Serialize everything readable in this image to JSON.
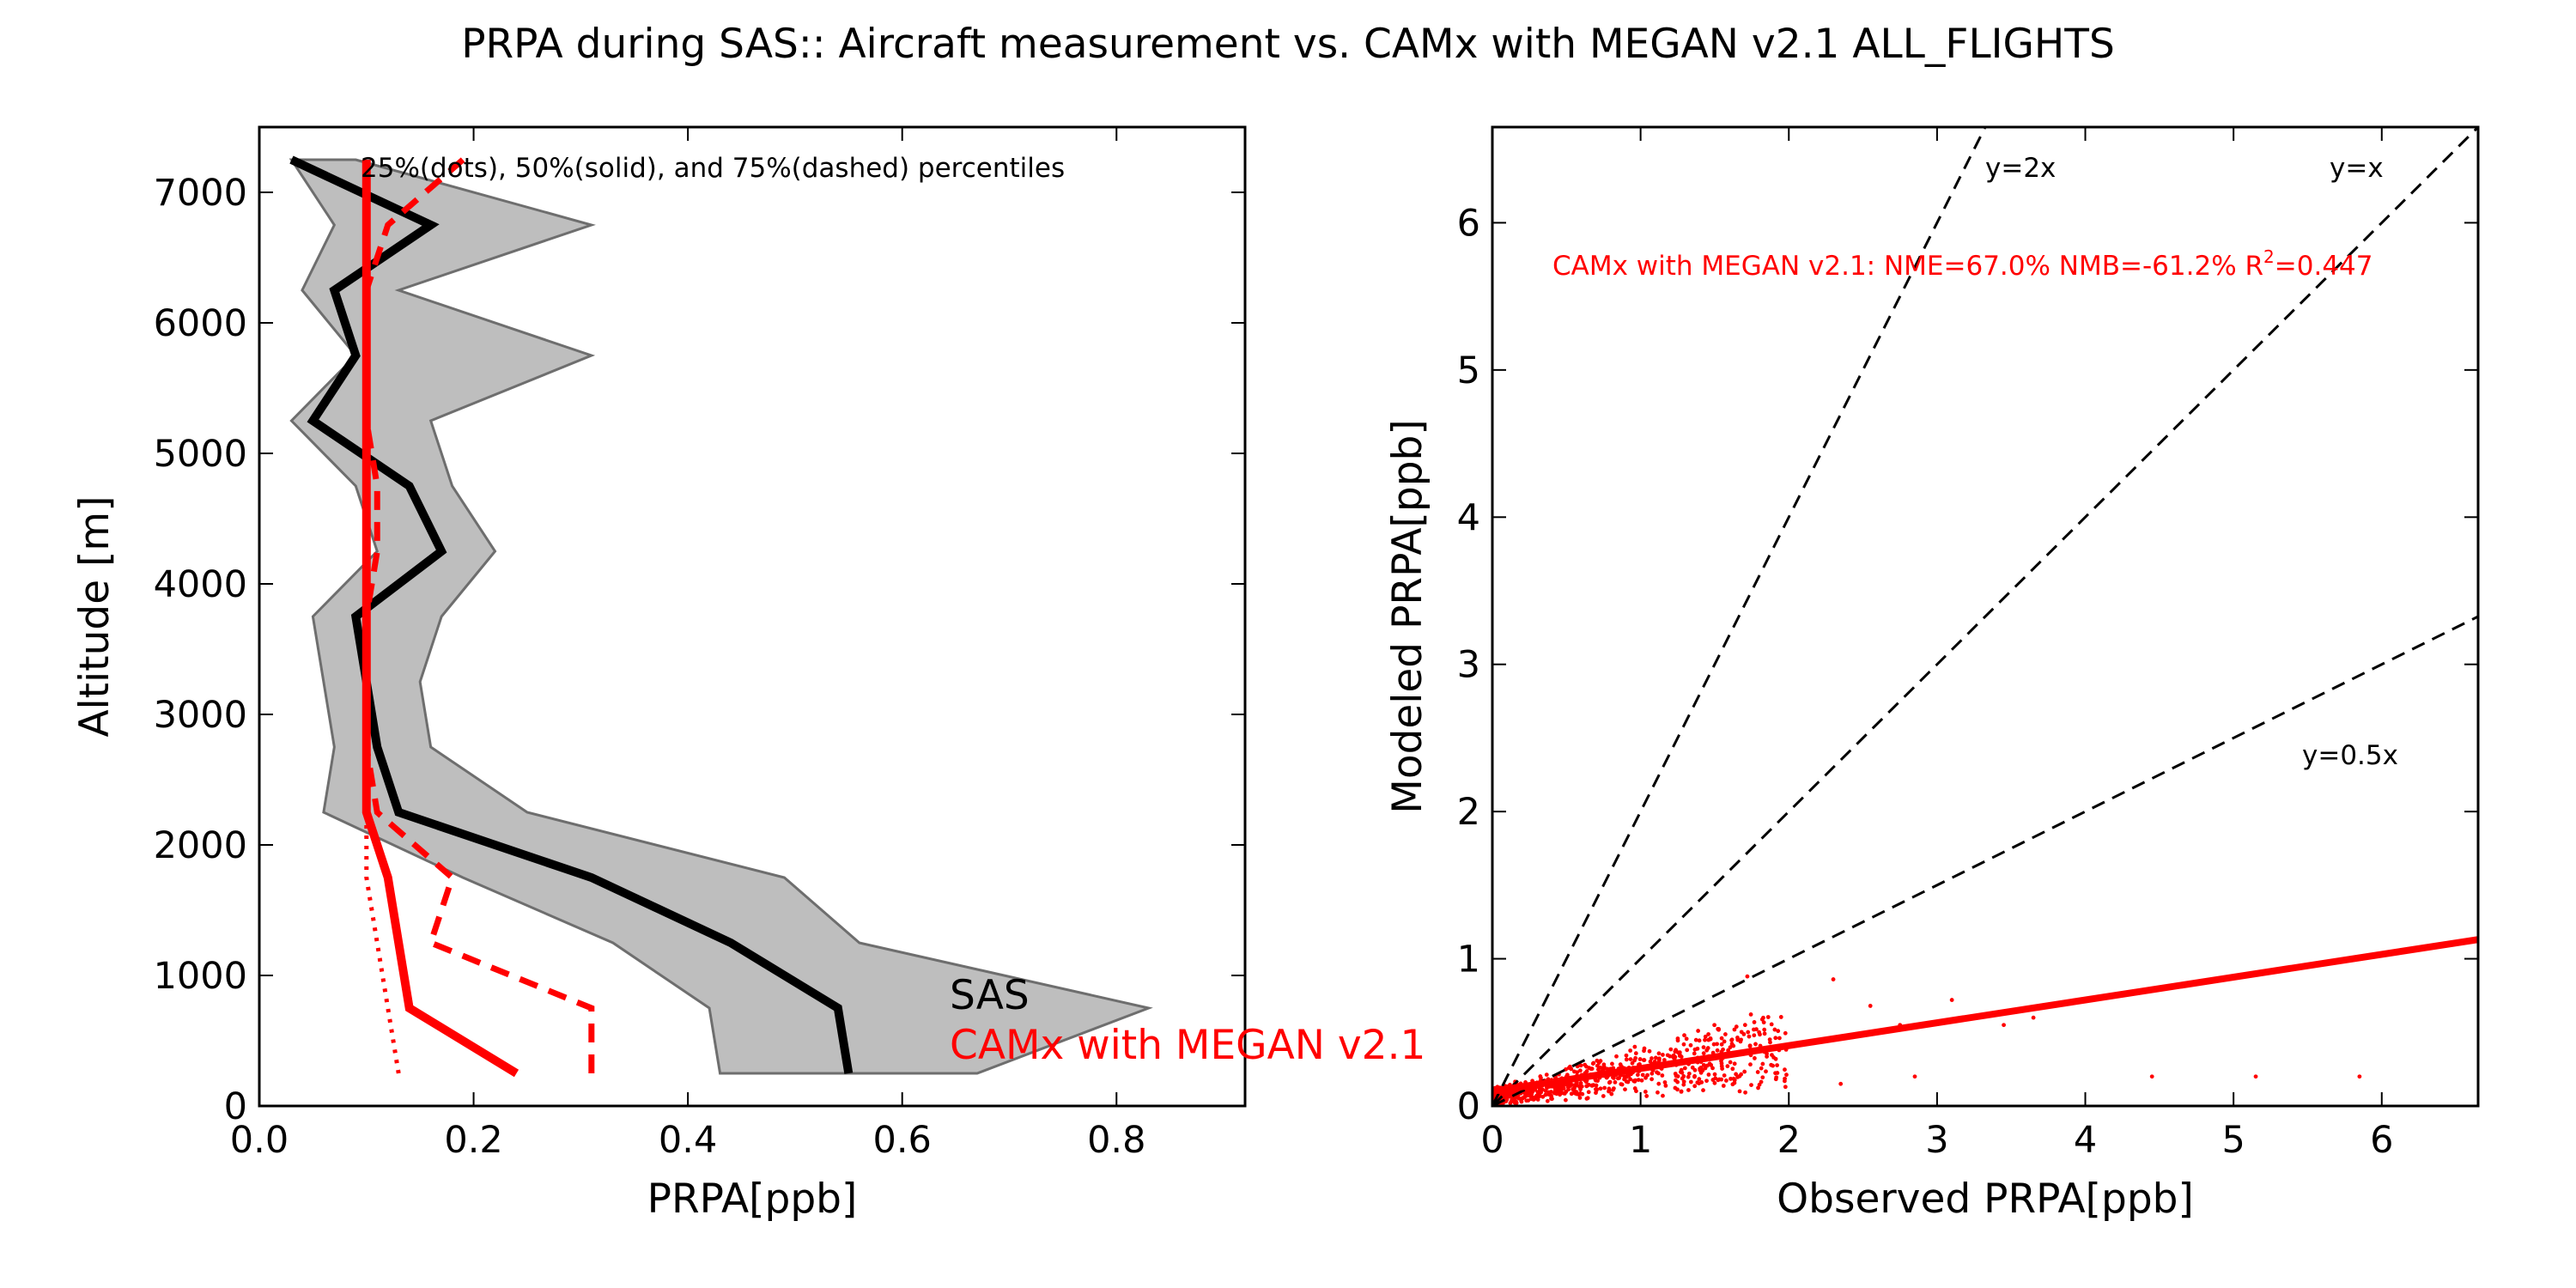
{
  "figure": {
    "title": "PRPA during SAS:: Aircraft measurement vs. CAMx with MEGAN v2.1 ALL_FLIGHTS"
  },
  "colors": {
    "obs": "#000000",
    "model": "#ff0000",
    "band_fill": "#bebebe",
    "band_edge": "#6e6e6e"
  },
  "chart_data": [
    {
      "type": "line",
      "xlabel": "PRPA[ppb]",
      "ylabel": "Altitude [m]",
      "xlim": [
        0.0,
        0.92
      ],
      "ylim": [
        0,
        7500
      ],
      "xticks": [
        "0.0",
        "0.2",
        "0.4",
        "0.6",
        "0.8"
      ],
      "yticks": [
        "0",
        "1000",
        "2000",
        "3000",
        "4000",
        "5000",
        "6000",
        "7000"
      ],
      "annotation": "25%(dots), 50%(solid), and 75%(dashed) percentiles",
      "legend": [
        {
          "label": "SAS",
          "color": "#000000"
        },
        {
          "label": "CAMx with MEGAN v2.1",
          "color": "#ff0000"
        }
      ],
      "observed_band": {
        "altitude": [
          250,
          750,
          1250,
          1750,
          2250,
          2750,
          3250,
          3750,
          4250,
          4750,
          5250,
          5750,
          6250,
          6750,
          7250
        ],
        "p25": [
          0.43,
          0.42,
          0.33,
          0.19,
          0.06,
          0.07,
          0.06,
          0.05,
          0.11,
          0.09,
          0.03,
          0.09,
          0.04,
          0.07,
          0.03
        ],
        "p75": [
          0.67,
          0.83,
          0.56,
          0.49,
          0.25,
          0.16,
          0.15,
          0.17,
          0.22,
          0.18,
          0.16,
          0.31,
          0.13,
          0.31,
          0.09
        ]
      },
      "series": [
        {
          "name": "SAS",
          "percentile": "50",
          "style": "solid",
          "altitude": [
            250,
            750,
            1250,
            1750,
            2250,
            2750,
            3250,
            3750,
            4250,
            4750,
            5250,
            5750,
            6250,
            6750,
            7250
          ],
          "values": [
            0.55,
            0.54,
            0.44,
            0.31,
            0.13,
            0.11,
            0.1,
            0.09,
            0.17,
            0.14,
            0.05,
            0.09,
            0.07,
            0.16,
            0.03
          ]
        },
        {
          "name": "CAMx with MEGAN v2.1",
          "percentile": "50",
          "style": "solid",
          "altitude": [
            250,
            750,
            1250,
            1750,
            2250,
            2750,
            3250,
            3750,
            4250,
            4750,
            5250,
            5750,
            6250,
            6750,
            7250
          ],
          "values": [
            0.24,
            0.14,
            0.13,
            0.12,
            0.1,
            0.1,
            0.1,
            0.1,
            0.1,
            0.1,
            0.1,
            0.1,
            0.1,
            0.1,
            0.1
          ]
        },
        {
          "name": "CAMx with MEGAN v2.1",
          "percentile": "25",
          "style": "dotted",
          "altitude": [
            250,
            750,
            1250,
            1750,
            2250,
            2750,
            3250,
            3750,
            4250,
            4750,
            5250,
            5750,
            6250,
            6750,
            7250
          ],
          "values": [
            0.13,
            0.12,
            0.11,
            0.1,
            0.1,
            0.1,
            0.1,
            0.1,
            0.1,
            0.1,
            0.1,
            0.1,
            0.1,
            0.1,
            0.1
          ]
        },
        {
          "name": "CAMx with MEGAN v2.1",
          "percentile": "75",
          "style": "dashed",
          "altitude": [
            250,
            750,
            1250,
            1750,
            2250,
            2750,
            3250,
            3750,
            4250,
            4750,
            5250,
            5750,
            6250,
            6750,
            7250
          ],
          "values": [
            0.31,
            0.31,
            0.16,
            0.18,
            0.11,
            0.1,
            0.1,
            0.1,
            0.11,
            0.11,
            0.1,
            0.1,
            0.1,
            0.12,
            0.19
          ]
        }
      ]
    },
    {
      "type": "scatter",
      "xlabel": "Observed PRPA[ppb]",
      "ylabel": "Modeled PRPA[ppb]",
      "xlim": [
        0,
        6.65
      ],
      "ylim": [
        0,
        6.65
      ],
      "xticks": [
        "0",
        "1",
        "2",
        "3",
        "4",
        "5",
        "6"
      ],
      "yticks": [
        "0",
        "1",
        "2",
        "3",
        "4",
        "5",
        "6"
      ],
      "stats_label": "CAMx with MEGAN v2.1: NME=67.0% NMB=-61.2% R",
      "stats_sup": "2",
      "stats_tail": "=0.447",
      "reference_lines": [
        {
          "label": "y=2x",
          "slope": 2
        },
        {
          "label": "y=x",
          "slope": 1
        },
        {
          "label": "y=0.5x",
          "slope": 0.5
        }
      ],
      "fit": {
        "slope": 0.155,
        "intercept": 0.1
      },
      "outliers": [
        {
          "x": 1.72,
          "y": 0.88
        },
        {
          "x": 2.3,
          "y": 0.86
        },
        {
          "x": 3.1,
          "y": 0.72
        },
        {
          "x": 2.55,
          "y": 0.68
        },
        {
          "x": 3.65,
          "y": 0.6
        },
        {
          "x": 2.75,
          "y": 0.55
        },
        {
          "x": 3.45,
          "y": 0.55
        },
        {
          "x": 5.15,
          "y": 0.2
        },
        {
          "x": 5.85,
          "y": 0.2
        },
        {
          "x": 4.45,
          "y": 0.2
        },
        {
          "x": 2.35,
          "y": 0.15
        },
        {
          "x": 2.85,
          "y": 0.2
        }
      ]
    }
  ]
}
